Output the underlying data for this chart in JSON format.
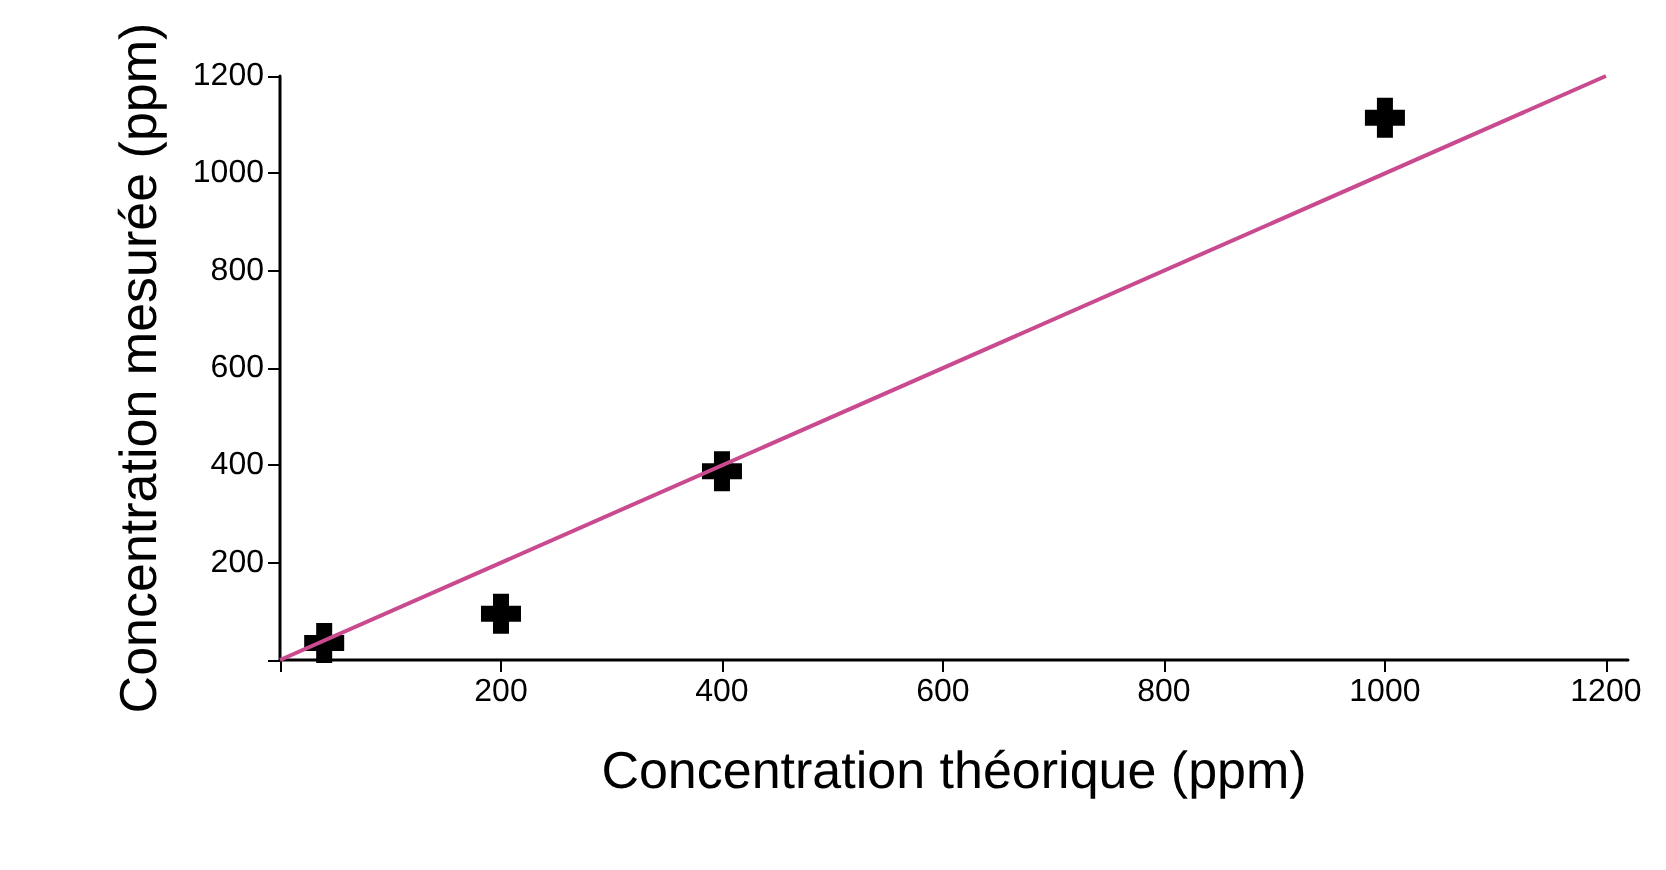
{
  "chart_data": {
    "type": "scatter",
    "xlabel": "Concentration théorique (ppm)",
    "ylabel": "Concentration mesurée (ppm)",
    "xlim": [
      0,
      1220
    ],
    "ylim": [
      0,
      1200
    ],
    "xticks": [
      {
        "value": 0,
        "label": null
      },
      200,
      400,
      600,
      800,
      1000,
      1200
    ],
    "yticks": [
      {
        "value": 0,
        "label": null
      },
      200,
      400,
      600,
      800,
      1000,
      1200
    ],
    "grid": false,
    "series": [
      {
        "color": "#000000",
        "marker": "cross",
        "x": [
          40,
          200,
          400,
          1000
        ],
        "values": [
          35,
          95,
          388,
          1114
        ]
      },
      {
        "type": "line",
        "color": "#c94a8f",
        "marker": "none",
        "line_style": "solid",
        "x": [
          0,
          1200
        ],
        "values": [
          0,
          1200
        ]
      }
    ]
  }
}
